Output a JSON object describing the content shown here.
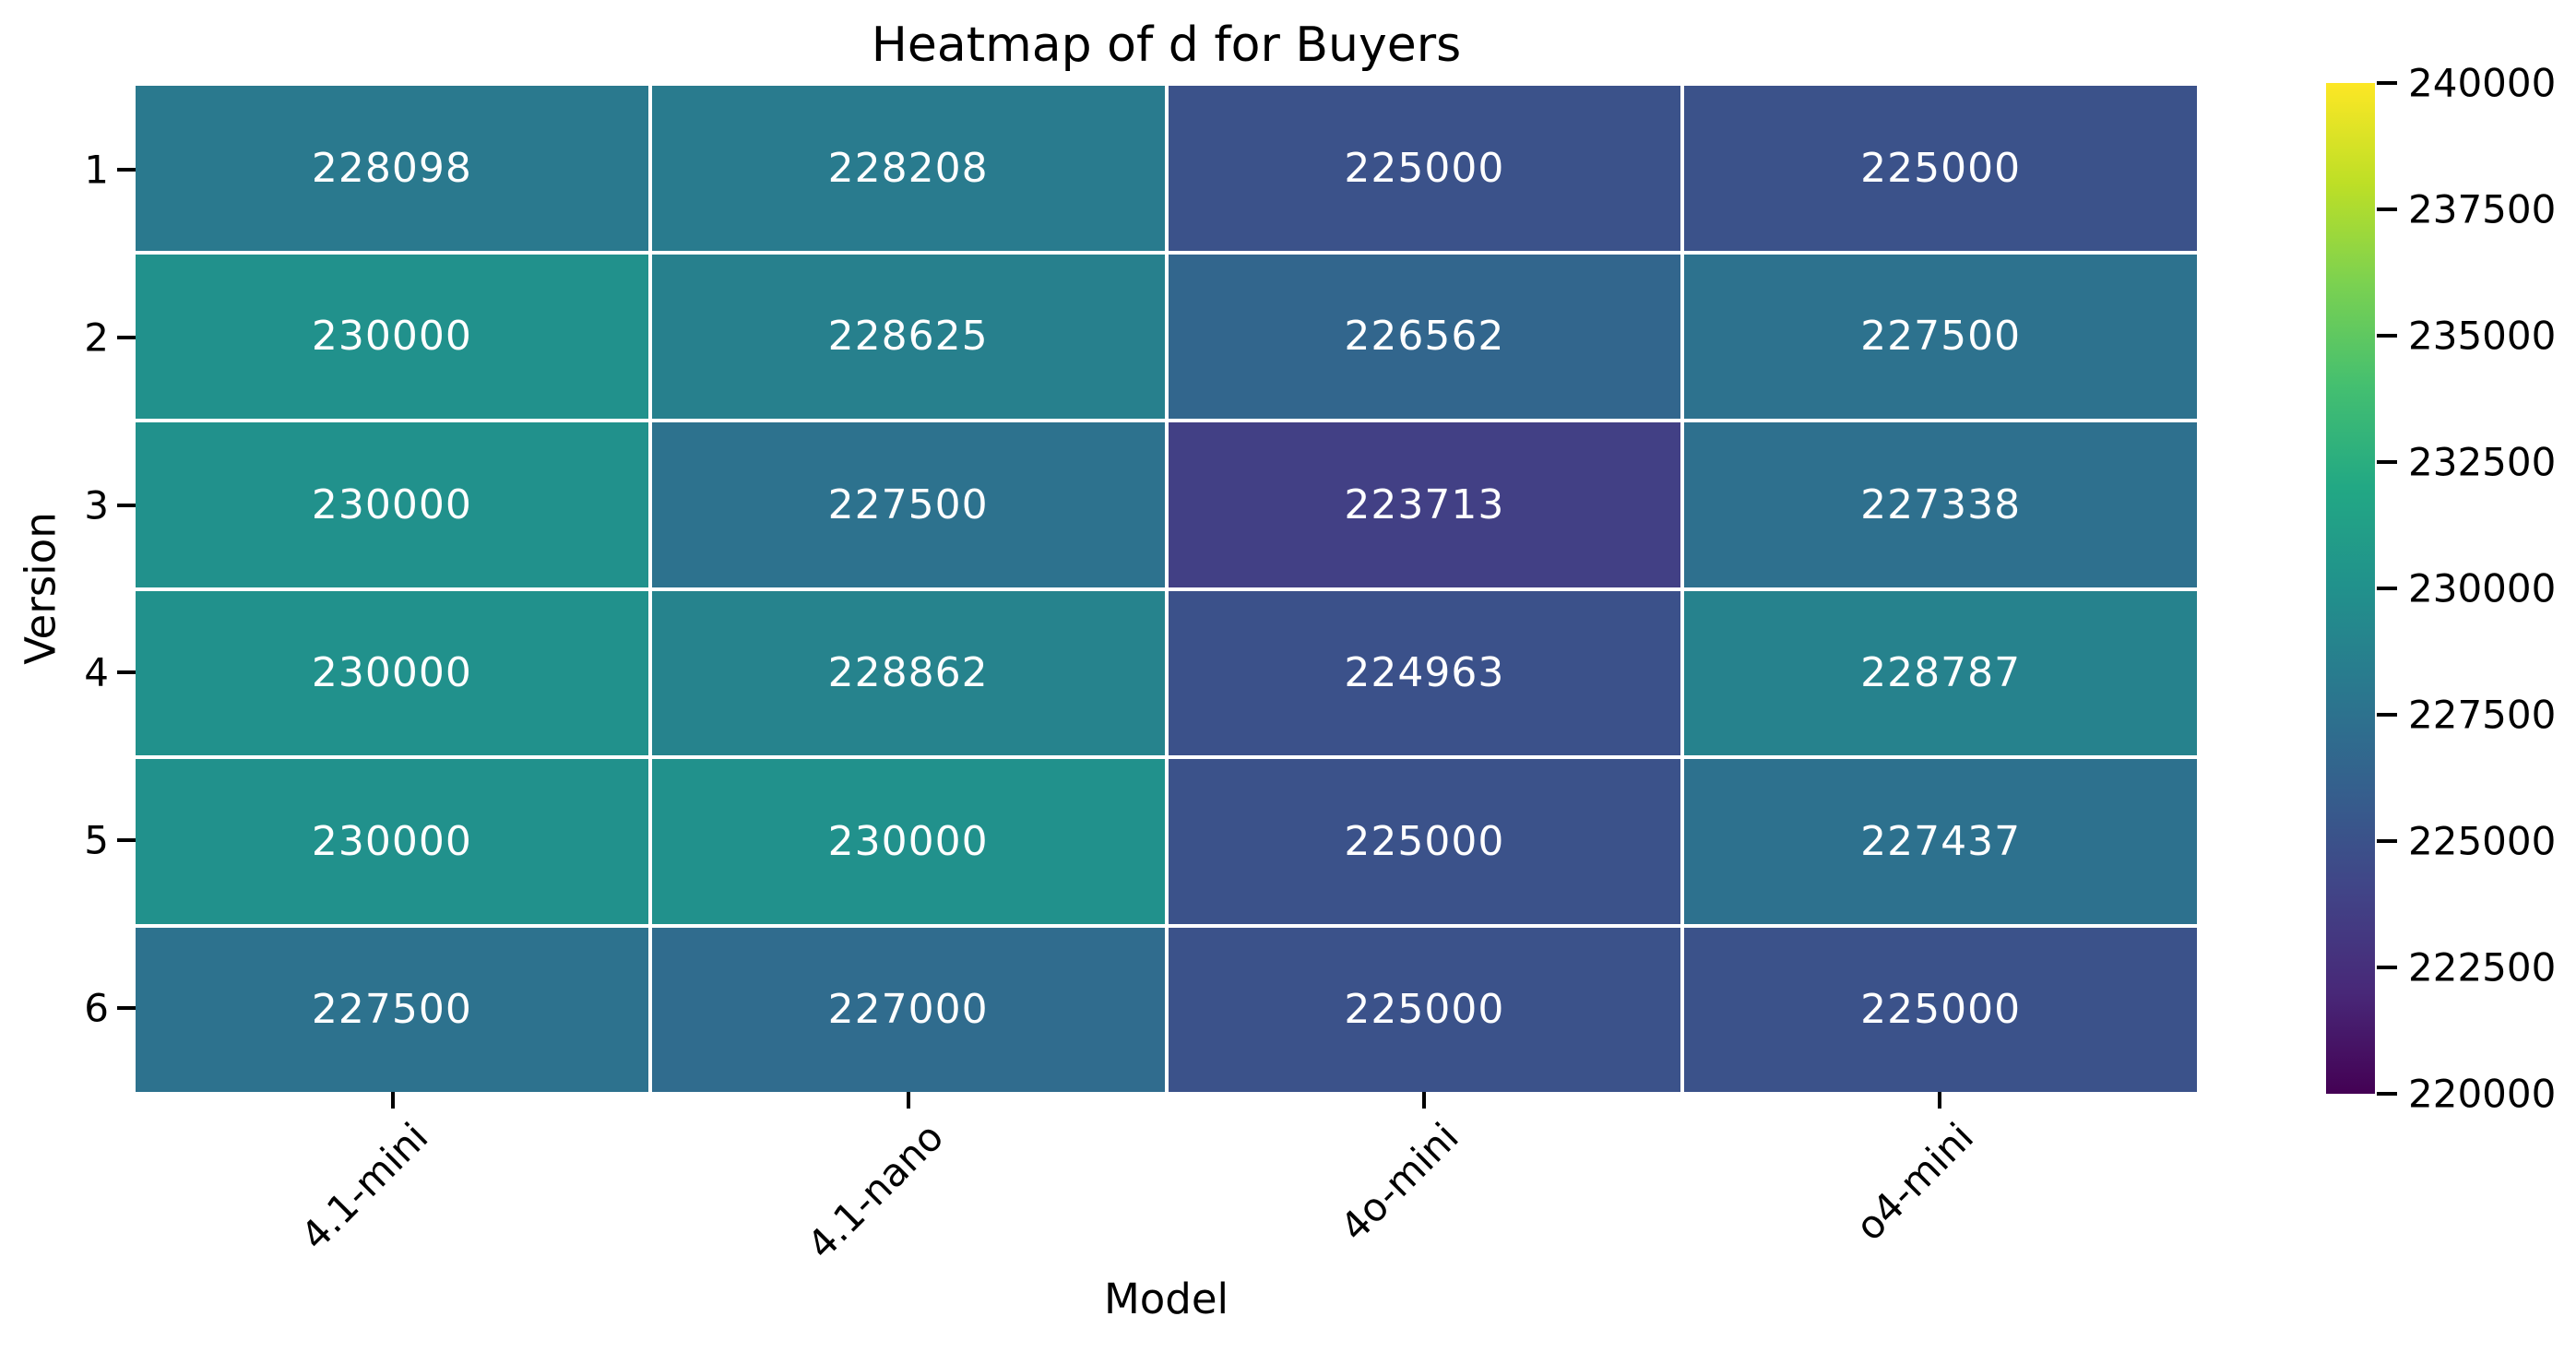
{
  "chart_data": {
    "type": "heatmap",
    "title": "Heatmap of d for Buyers",
    "xlabel": "Model",
    "ylabel": "Version",
    "x_categories": [
      "4.1-mini",
      "4.1-nano",
      "4o-mini",
      "o4-mini"
    ],
    "y_categories": [
      "1",
      "2",
      "3",
      "4",
      "5",
      "6"
    ],
    "values": [
      [
        228098,
        228208,
        225000,
        225000
      ],
      [
        230000,
        228625,
        226562,
        227500
      ],
      [
        230000,
        227500,
        223713,
        227338
      ],
      [
        230000,
        228862,
        224963,
        228787
      ],
      [
        230000,
        230000,
        225000,
        227437
      ],
      [
        227500,
        227000,
        225000,
        225000
      ]
    ],
    "vmin": 220000,
    "vmax": 240000,
    "colormap": "viridis",
    "colormap_stops": [
      "#440154",
      "#482878",
      "#414487",
      "#355f8d",
      "#2a788e",
      "#21918c",
      "#22a884",
      "#44bf70",
      "#7ad151",
      "#bddf26",
      "#fde725"
    ],
    "colorbar_ticks": [
      220000,
      222500,
      225000,
      227500,
      230000,
      232500,
      235000,
      237500,
      240000
    ],
    "annotation_color": "#ffffff",
    "cell_gap_color": "#ffffff",
    "text_color": "#000000",
    "background_color": "#ffffff",
    "layout_hints": {
      "grid": "off",
      "legend": "none",
      "colorbar_position": "right",
      "x_tick_rotation_deg": 45
    }
  }
}
